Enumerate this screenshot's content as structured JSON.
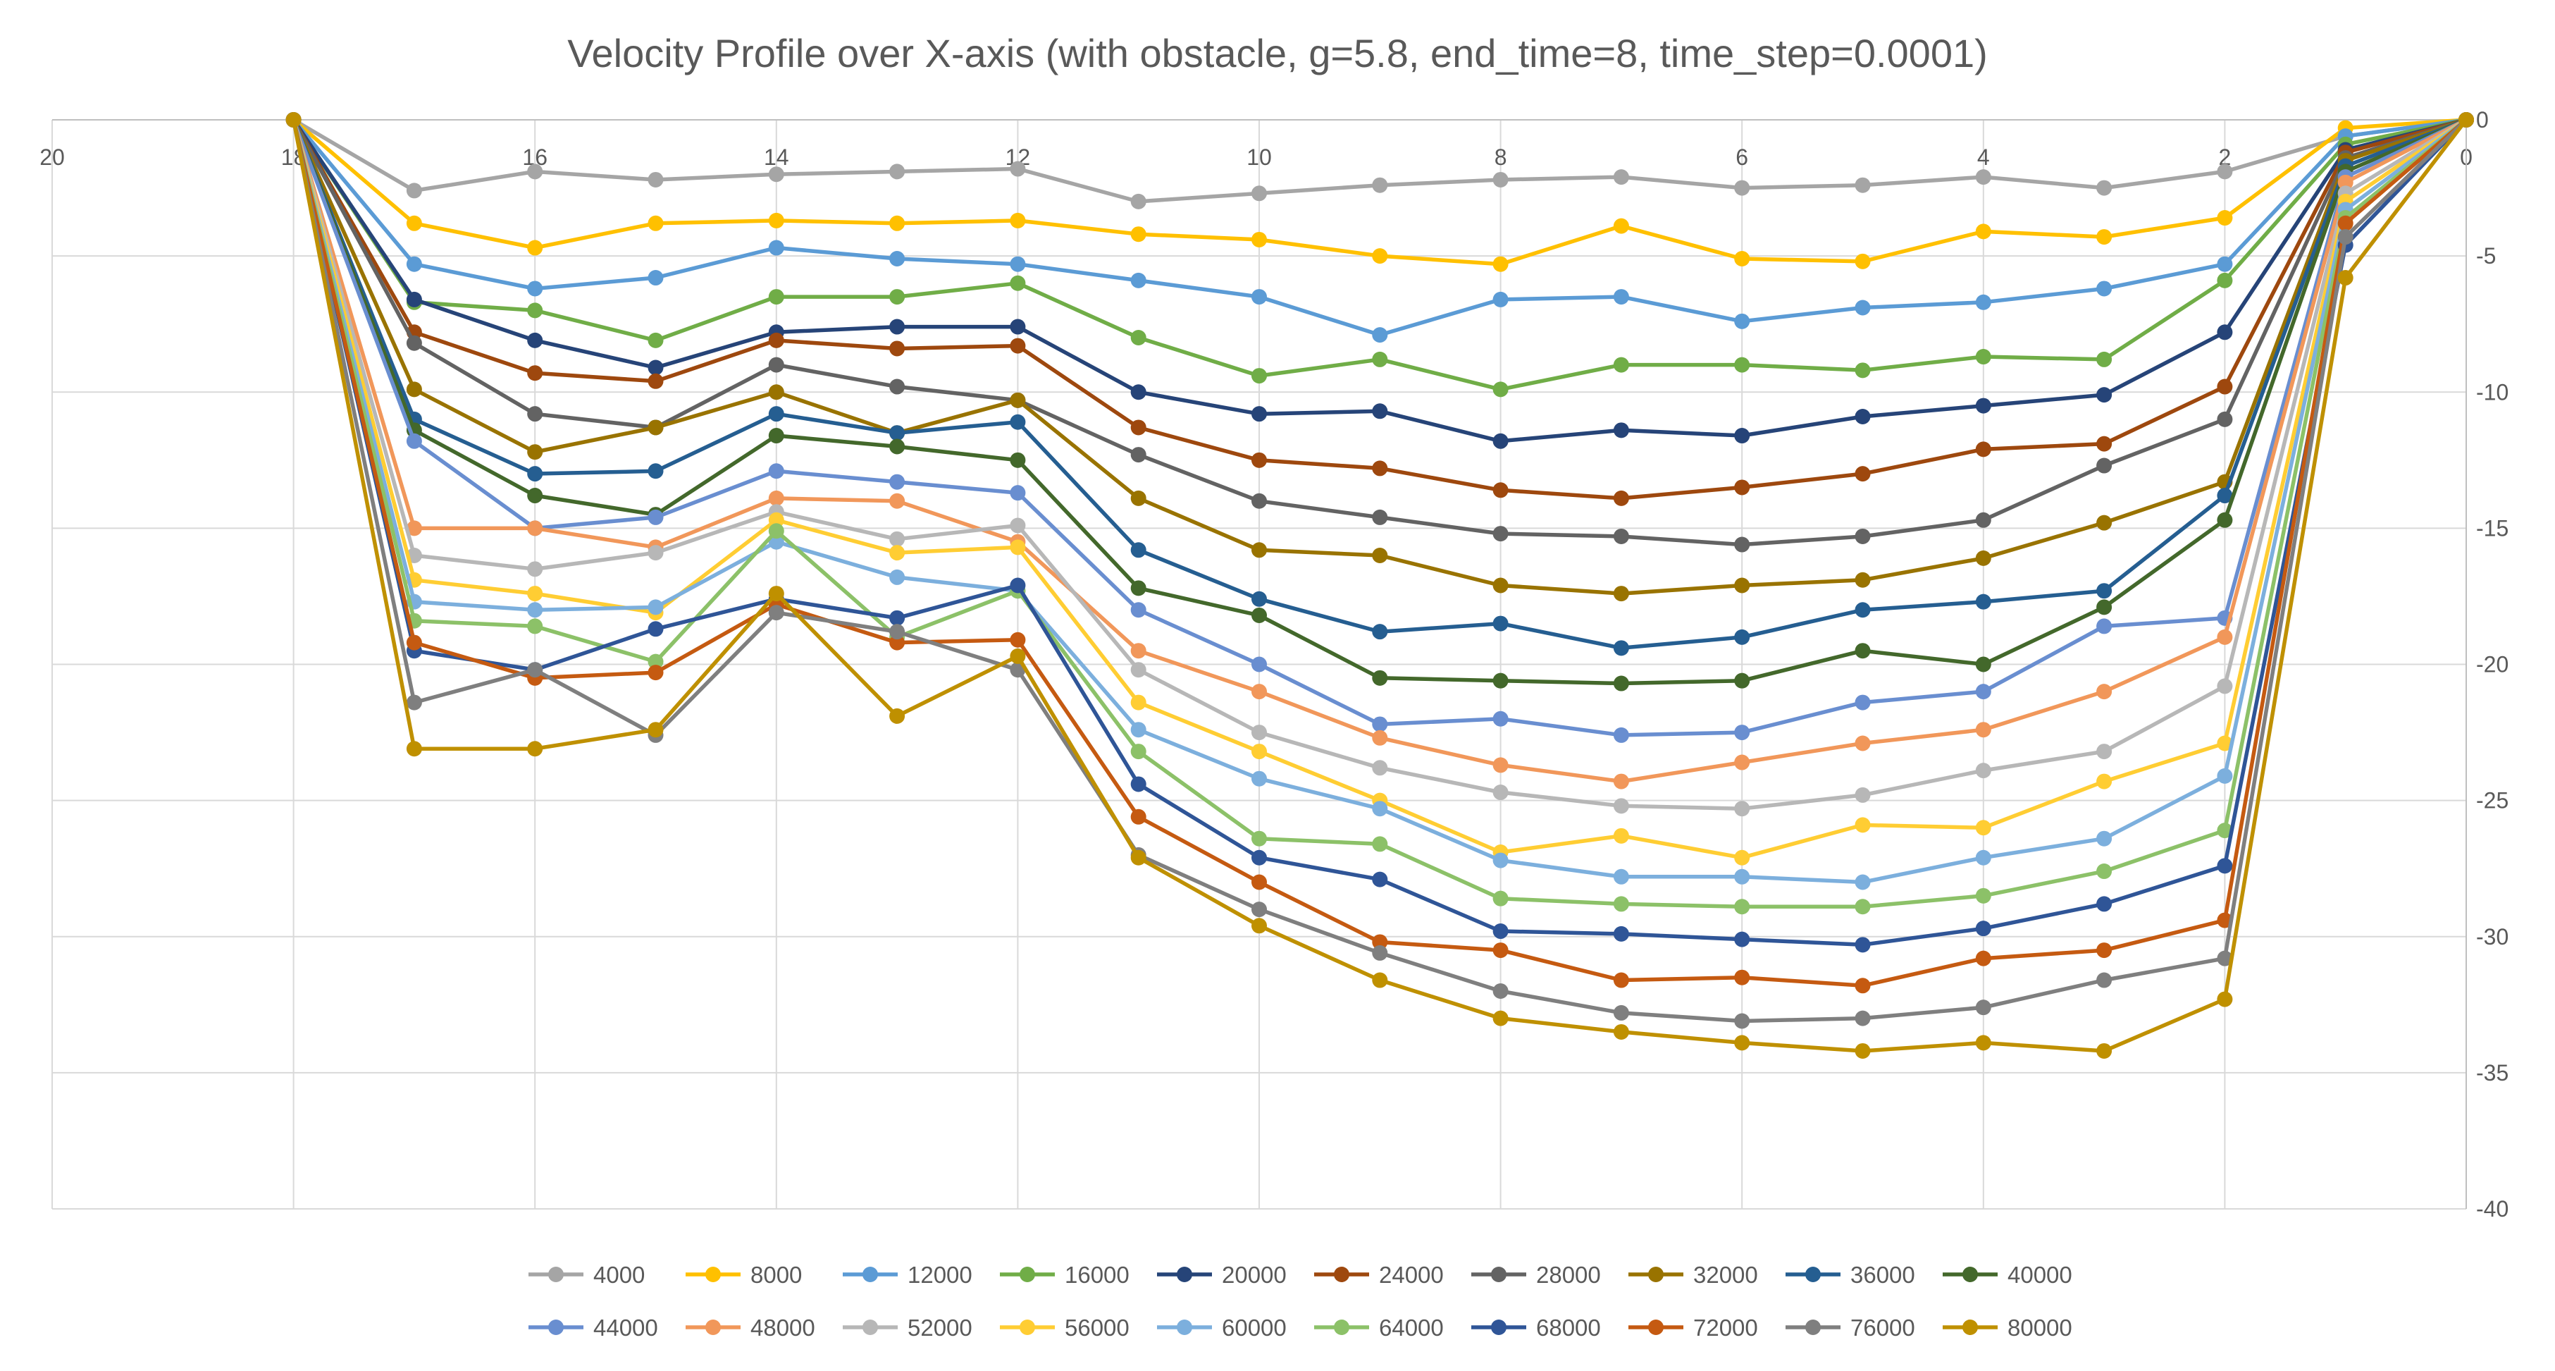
{
  "chart_data": {
    "type": "line",
    "title": "Velocity Profile over X-axis (with obstacle, g=5.8, end_time=8, time_step=0.0001)",
    "xlabel": "",
    "ylabel": "",
    "x": [
      18,
      17,
      16,
      15,
      14,
      13,
      12,
      11,
      10,
      9,
      8,
      7,
      6,
      5,
      4,
      3,
      2,
      1,
      0
    ],
    "xlim": [
      20,
      0
    ],
    "ylim": [
      -40,
      0
    ],
    "x_ticks": [
      "20",
      "18",
      "16",
      "14",
      "12",
      "10",
      "8",
      "6",
      "4",
      "2",
      "0"
    ],
    "y_ticks": [
      "0",
      "-5",
      "-10",
      "-15",
      "-20",
      "-25",
      "-30",
      "-35",
      "-40"
    ],
    "x_axis_reversed": true,
    "y_axis_position": "right",
    "grid": true,
    "legend_position": "bottom",
    "series": [
      {
        "name": "4000",
        "color": "#A5A5A5",
        "values": [
          0,
          -2.6,
          -1.9,
          -2.2,
          -2.0,
          -1.9,
          -1.8,
          -3.0,
          -2.7,
          -2.4,
          -2.2,
          -2.1,
          -2.5,
          -2.4,
          -2.1,
          -2.5,
          -1.9,
          -0.6,
          0
        ]
      },
      {
        "name": "8000",
        "color": "#FFC000",
        "values": [
          0,
          -3.8,
          -4.7,
          -3.8,
          -3.7,
          -3.8,
          -3.7,
          -4.2,
          -4.4,
          -5.0,
          -5.3,
          -3.9,
          -5.1,
          -5.2,
          -4.1,
          -4.3,
          -3.6,
          -0.3,
          0
        ]
      },
      {
        "name": "12000",
        "color": "#5B9BD5",
        "values": [
          0,
          -5.3,
          -6.2,
          -5.8,
          -4.7,
          -5.1,
          -5.3,
          -5.9,
          -6.5,
          -7.9,
          -6.6,
          -6.5,
          -7.4,
          -6.9,
          -6.7,
          -6.2,
          -5.3,
          -0.6,
          0
        ]
      },
      {
        "name": "16000",
        "color": "#70AD47",
        "values": [
          0,
          -6.7,
          -7.0,
          -8.1,
          -6.5,
          -6.5,
          -6.0,
          -8.0,
          -9.4,
          -8.8,
          -9.9,
          -9.0,
          -9.0,
          -9.2,
          -8.7,
          -8.8,
          -5.9,
          -0.9,
          0
        ]
      },
      {
        "name": "20000",
        "color": "#264478",
        "values": [
          0,
          -6.6,
          -8.1,
          -9.1,
          -7.8,
          -7.6,
          -7.6,
          -10.0,
          -10.8,
          -10.7,
          -11.8,
          -11.4,
          -11.6,
          -10.9,
          -10.5,
          -10.1,
          -7.8,
          -1.1,
          0
        ]
      },
      {
        "name": "24000",
        "color": "#9E480E",
        "values": [
          0,
          -7.8,
          -9.3,
          -9.6,
          -8.1,
          -8.4,
          -8.3,
          -11.3,
          -12.5,
          -12.8,
          -13.6,
          -13.9,
          -13.5,
          -13.0,
          -12.1,
          -11.9,
          -9.8,
          -1.2,
          0
        ]
      },
      {
        "name": "28000",
        "color": "#636363",
        "values": [
          0,
          -8.2,
          -10.8,
          -11.3,
          -9.0,
          -9.8,
          -10.3,
          -12.3,
          -14.0,
          -14.6,
          -15.2,
          -15.3,
          -15.6,
          -15.3,
          -14.7,
          -12.7,
          -11.0,
          -1.4,
          0
        ]
      },
      {
        "name": "32000",
        "color": "#997300",
        "values": [
          0,
          -9.9,
          -12.2,
          -11.3,
          -10.0,
          -11.5,
          -10.3,
          -13.9,
          -15.8,
          -16.0,
          -17.1,
          -17.4,
          -17.1,
          -16.9,
          -16.1,
          -14.8,
          -13.3,
          -1.5,
          0
        ]
      },
      {
        "name": "36000",
        "color": "#255E91",
        "values": [
          0,
          -11.0,
          -13.0,
          -12.9,
          -10.8,
          -11.5,
          -11.1,
          -15.8,
          -17.6,
          -18.8,
          -18.5,
          -19.4,
          -19.0,
          -18.0,
          -17.7,
          -17.3,
          -13.8,
          -1.7,
          0
        ]
      },
      {
        "name": "40000",
        "color": "#43682B",
        "values": [
          0,
          -11.4,
          -13.8,
          -14.5,
          -11.6,
          -12.0,
          -12.5,
          -17.2,
          -18.2,
          -20.5,
          -20.6,
          -20.7,
          -20.6,
          -19.5,
          -20.0,
          -17.9,
          -14.7,
          -1.9,
          0
        ]
      },
      {
        "name": "44000",
        "color": "#698ED0",
        "values": [
          0,
          -11.8,
          -15.0,
          -14.6,
          -12.9,
          -13.3,
          -13.7,
          -18.0,
          -20.0,
          -22.2,
          -22.0,
          -22.6,
          -22.5,
          -21.4,
          -21.0,
          -18.6,
          -18.3,
          -2.1,
          0
        ]
      },
      {
        "name": "48000",
        "color": "#F1975A",
        "values": [
          0,
          -15.0,
          -15.0,
          -15.7,
          -13.9,
          -14.0,
          -15.5,
          -19.5,
          -21.0,
          -22.7,
          -23.7,
          -24.3,
          -23.6,
          -22.9,
          -22.4,
          -21.0,
          -19.0,
          -2.3,
          0
        ]
      },
      {
        "name": "52000",
        "color": "#B7B7B7",
        "values": [
          0,
          -16.0,
          -16.5,
          -15.9,
          -14.4,
          -15.4,
          -14.9,
          -20.2,
          -22.5,
          -23.8,
          -24.7,
          -25.2,
          -25.3,
          -24.8,
          -23.9,
          -23.2,
          -20.8,
          -2.7,
          0
        ]
      },
      {
        "name": "56000",
        "color": "#FFCD33",
        "values": [
          0,
          -16.9,
          -17.4,
          -18.1,
          -14.7,
          -15.9,
          -15.7,
          -21.4,
          -23.2,
          -25.0,
          -26.9,
          -26.3,
          -27.1,
          -25.9,
          -26.0,
          -24.3,
          -22.9,
          -3.0,
          0
        ]
      },
      {
        "name": "60000",
        "color": "#7CAFDD",
        "values": [
          0,
          -17.7,
          -18.0,
          -17.9,
          -15.5,
          -16.8,
          -17.3,
          -22.4,
          -24.2,
          -25.3,
          -27.2,
          -27.8,
          -27.8,
          -28.0,
          -27.1,
          -26.4,
          -24.1,
          -3.3,
          0
        ]
      },
      {
        "name": "64000",
        "color": "#8CC168",
        "values": [
          0,
          -18.4,
          -18.6,
          -19.9,
          -15.1,
          -19.0,
          -17.3,
          -23.2,
          -26.4,
          -26.6,
          -28.6,
          -28.8,
          -28.9,
          -28.9,
          -28.5,
          -27.6,
          -26.1,
          -3.6,
          0
        ]
      },
      {
        "name": "68000",
        "color": "#2F5597",
        "values": [
          0,
          -19.5,
          -20.2,
          -18.7,
          -17.6,
          -18.3,
          -17.1,
          -24.4,
          -27.1,
          -27.9,
          -29.8,
          -29.9,
          -30.1,
          -30.3,
          -29.7,
          -28.8,
          -27.4,
          -4.6,
          0
        ]
      },
      {
        "name": "72000",
        "color": "#C55A11",
        "values": [
          0,
          -19.2,
          -20.5,
          -20.3,
          -17.8,
          -19.2,
          -19.1,
          -25.6,
          -28.0,
          -30.2,
          -30.5,
          -31.6,
          -31.5,
          -31.8,
          -30.8,
          -30.5,
          -29.4,
          -3.8,
          0
        ]
      },
      {
        "name": "76000",
        "color": "#7F7F7F",
        "values": [
          0,
          -21.4,
          -20.2,
          -22.6,
          -18.1,
          -18.8,
          -20.2,
          -27.0,
          -29.0,
          -30.6,
          -32.0,
          -32.8,
          -33.1,
          -33.0,
          -32.6,
          -31.6,
          -30.8,
          -4.3,
          0
        ]
      },
      {
        "name": "80000",
        "color": "#BF9000",
        "values": [
          0,
          -23.1,
          -23.1,
          -22.4,
          -17.4,
          -21.9,
          -19.7,
          -27.1,
          -29.6,
          -31.6,
          -33.0,
          -33.5,
          -33.9,
          -34.2,
          -33.9,
          -34.2,
          -32.3,
          -5.8,
          0
        ]
      }
    ]
  }
}
